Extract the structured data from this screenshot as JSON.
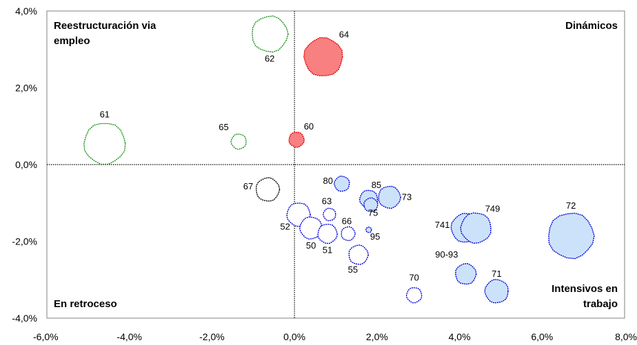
{
  "chart_data": {
    "type": "scatter",
    "subtype": "bubble",
    "x_range": [
      -6,
      8
    ],
    "y_range": [
      -4,
      4
    ],
    "x_ticks": [
      "-6,0%",
      "-4,0%",
      "-2,0%",
      "0,0%",
      "2,0%",
      "4,0%",
      "6,0%",
      "8,0%"
    ],
    "y_ticks": [
      "4,0%",
      "2,0%",
      "0,0%",
      "-2,0%",
      "-4,0%"
    ],
    "grid": false,
    "quadrant_labels": {
      "top_left": [
        "Reestructuración via",
        "empleo"
      ],
      "top_right": [
        "Dinámicos"
      ],
      "bottom_left": [
        "En retroceso"
      ],
      "bottom_right": [
        "Intensivos en",
        "trabajo"
      ]
    },
    "colors": {
      "green": "#169116",
      "red_fill": "#f88080",
      "red_edge": "#e00000",
      "blue_fill": "#cce2fa",
      "blue_edge": "#0000d8",
      "black": "#000000"
    },
    "points": [
      {
        "label": "61",
        "x": -4.6,
        "y": 0.55,
        "size": 30,
        "style": "green"
      },
      {
        "label": "62",
        "x": -0.6,
        "y": 3.4,
        "size": 26,
        "style": "green"
      },
      {
        "label": "64",
        "x": 0.7,
        "y": 2.8,
        "size": 28,
        "style": "red"
      },
      {
        "label": "65",
        "x": -1.35,
        "y": 0.6,
        "size": 11,
        "style": "green"
      },
      {
        "label": "60",
        "x": 0.05,
        "y": 0.65,
        "size": 11,
        "style": "red"
      },
      {
        "label": "67",
        "x": -0.65,
        "y": -0.65,
        "size": 17,
        "style": "black"
      },
      {
        "label": "80",
        "x": 1.15,
        "y": -0.5,
        "size": 11,
        "style": "blue_filled"
      },
      {
        "label": "85",
        "x": 1.8,
        "y": -0.9,
        "size": 13,
        "style": "blue_filled"
      },
      {
        "label": "73",
        "x": 2.3,
        "y": -0.85,
        "size": 16,
        "style": "blue_filled"
      },
      {
        "label": "75",
        "x": 1.85,
        "y": -1.05,
        "size": 10,
        "style": "blue_filled"
      },
      {
        "label": "63",
        "x": 0.85,
        "y": -1.3,
        "size": 9,
        "style": "blue_open"
      },
      {
        "label": "52",
        "x": 0.1,
        "y": -1.3,
        "size": 17,
        "style": "blue_open"
      },
      {
        "label": "66",
        "x": 1.3,
        "y": -1.8,
        "size": 10,
        "style": "blue_open"
      },
      {
        "label": "95",
        "x": 1.8,
        "y": -1.7,
        "size": 4,
        "style": "blue_filled"
      },
      {
        "label": "50",
        "x": 0.4,
        "y": -1.65,
        "size": 16,
        "style": "blue_open"
      },
      {
        "label": "51",
        "x": 0.8,
        "y": -1.8,
        "size": 14,
        "style": "blue_open"
      },
      {
        "label": "55",
        "x": 1.55,
        "y": -2.35,
        "size": 14,
        "style": "blue_open"
      },
      {
        "label": "741",
        "x": 4.15,
        "y": -1.65,
        "size": 21,
        "style": "blue_filled"
      },
      {
        "label": "749",
        "x": 4.4,
        "y": -1.65,
        "size": 22,
        "style": "blue_filled"
      },
      {
        "label": "72",
        "x": 6.7,
        "y": -1.85,
        "size": 33,
        "style": "blue_filled"
      },
      {
        "label": "90-93",
        "x": 4.15,
        "y": -2.85,
        "size": 15,
        "style": "blue_filled"
      },
      {
        "label": "71",
        "x": 4.9,
        "y": -3.3,
        "size": 17,
        "style": "blue_filled"
      },
      {
        "label": "70",
        "x": 2.9,
        "y": -3.4,
        "size": 11,
        "style": "blue_open"
      }
    ]
  }
}
